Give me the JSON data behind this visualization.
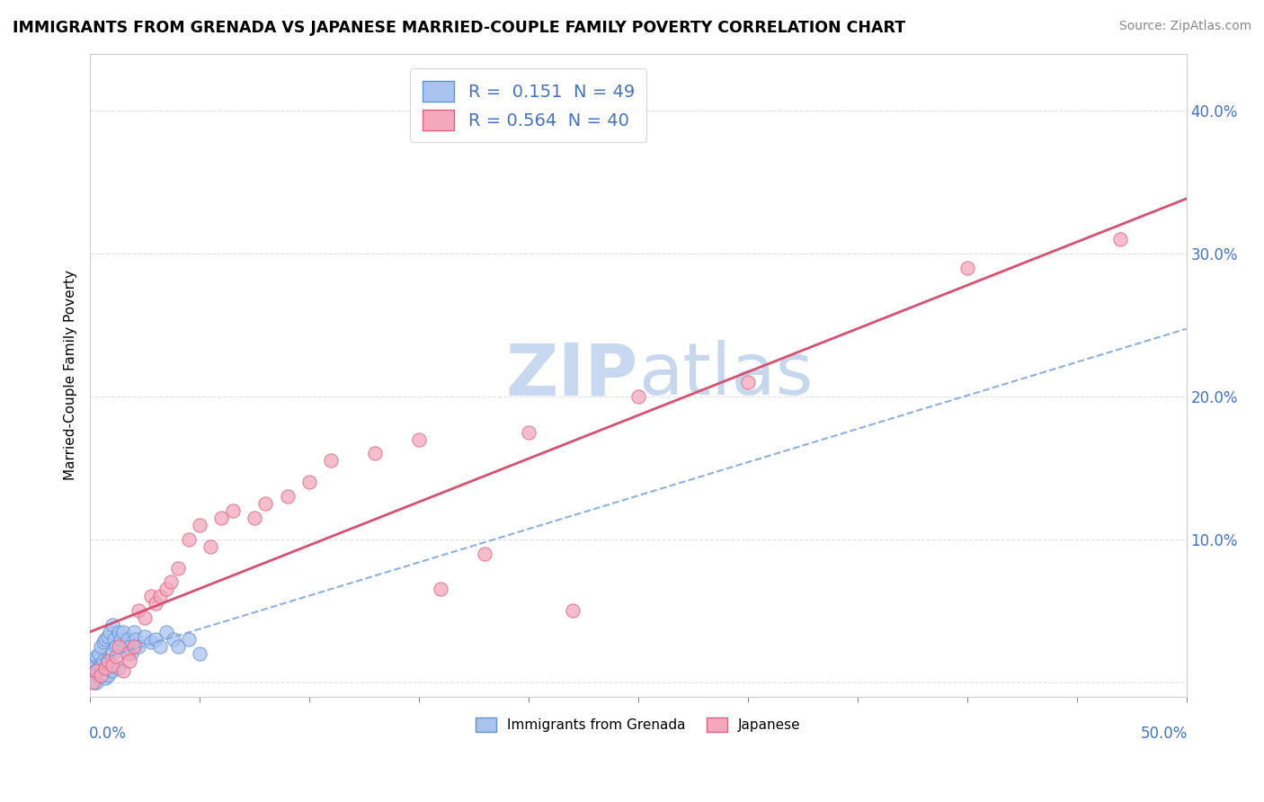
{
  "title": "IMMIGRANTS FROM GRENADA VS JAPANESE MARRIED-COUPLE FAMILY POVERTY CORRELATION CHART",
  "source": "Source: ZipAtlas.com",
  "ylabel": "Married-Couple Family Poverty",
  "y_ticks": [
    0.0,
    0.1,
    0.2,
    0.3,
    0.4
  ],
  "y_tick_labels": [
    "",
    "10.0%",
    "20.0%",
    "30.0%",
    "40.0%"
  ],
  "x_lim": [
    0.0,
    0.5
  ],
  "y_lim": [
    -0.01,
    0.44
  ],
  "grenada_R": 0.151,
  "grenada_N": 49,
  "japanese_R": 0.564,
  "japanese_N": 40,
  "grenada_color": "#aac4f0",
  "grenada_edge": "#6090d8",
  "japanese_color": "#f4a8bc",
  "japanese_edge": "#e06080",
  "trendline_grenada_color": "#80a8e0",
  "trendline_japanese_color": "#d85070",
  "watermark_color": "#c8d8f0",
  "background_color": "#ffffff",
  "grid_color": "#d8d8d8",
  "grenada_x": [
    0.001,
    0.001,
    0.002,
    0.002,
    0.003,
    0.003,
    0.003,
    0.004,
    0.004,
    0.004,
    0.005,
    0.005,
    0.005,
    0.006,
    0.006,
    0.006,
    0.007,
    0.007,
    0.007,
    0.008,
    0.008,
    0.008,
    0.009,
    0.009,
    0.01,
    0.01,
    0.01,
    0.011,
    0.012,
    0.013,
    0.013,
    0.014,
    0.015,
    0.016,
    0.017,
    0.018,
    0.019,
    0.02,
    0.021,
    0.022,
    0.025,
    0.028,
    0.03,
    0.032,
    0.035,
    0.038,
    0.04,
    0.045,
    0.05
  ],
  "grenada_y": [
    0.005,
    0.01,
    0.0,
    0.015,
    0.018,
    0.008,
    0.0,
    0.02,
    0.005,
    0.01,
    0.025,
    0.012,
    0.005,
    0.028,
    0.015,
    0.005,
    0.03,
    0.01,
    0.003,
    0.032,
    0.015,
    0.005,
    0.035,
    0.01,
    0.04,
    0.02,
    0.008,
    0.03,
    0.025,
    0.035,
    0.01,
    0.03,
    0.035,
    0.025,
    0.03,
    0.025,
    0.02,
    0.035,
    0.03,
    0.025,
    0.032,
    0.028,
    0.03,
    0.025,
    0.035,
    0.03,
    0.025,
    0.03,
    0.02
  ],
  "japanese_x": [
    0.001,
    0.003,
    0.005,
    0.007,
    0.008,
    0.01,
    0.012,
    0.013,
    0.015,
    0.017,
    0.018,
    0.02,
    0.022,
    0.025,
    0.028,
    0.03,
    0.032,
    0.035,
    0.037,
    0.04,
    0.045,
    0.05,
    0.055,
    0.06,
    0.065,
    0.075,
    0.08,
    0.09,
    0.1,
    0.11,
    0.13,
    0.15,
    0.16,
    0.18,
    0.2,
    0.22,
    0.25,
    0.3,
    0.4,
    0.47
  ],
  "japanese_y": [
    0.0,
    0.008,
    0.005,
    0.01,
    0.015,
    0.012,
    0.018,
    0.025,
    0.008,
    0.02,
    0.015,
    0.025,
    0.05,
    0.045,
    0.06,
    0.055,
    0.06,
    0.065,
    0.07,
    0.08,
    0.1,
    0.11,
    0.095,
    0.115,
    0.12,
    0.115,
    0.125,
    0.13,
    0.14,
    0.155,
    0.16,
    0.17,
    0.065,
    0.09,
    0.175,
    0.05,
    0.2,
    0.21,
    0.29,
    0.31
  ]
}
